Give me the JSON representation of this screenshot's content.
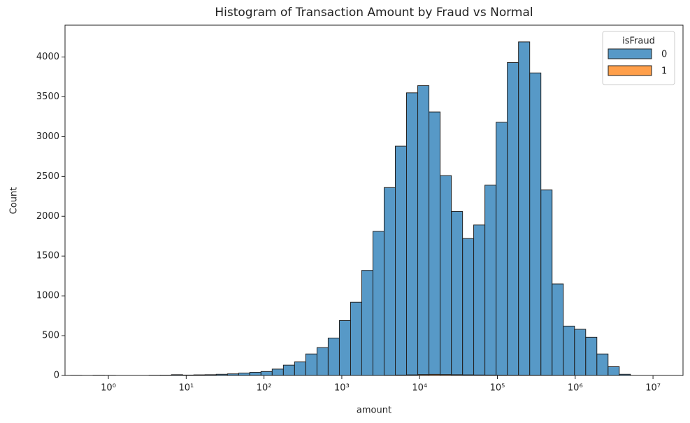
{
  "chart_data": {
    "type": "histogram",
    "title": "Histogram of Transaction Amount by Fraud vs Normal",
    "x_label": "amount",
    "y_label": "Count",
    "xscale": "log",
    "xlim": [
      0.277,
      24300000
    ],
    "ylim": [
      0,
      4400
    ],
    "xticks": [
      {
        "value": 1,
        "label": "10⁰"
      },
      {
        "value": 10,
        "label": "10¹"
      },
      {
        "value": 100,
        "label": "10²"
      },
      {
        "value": 1000,
        "label": "10³"
      },
      {
        "value": 10000,
        "label": "10⁴"
      },
      {
        "value": 100000,
        "label": "10⁵"
      },
      {
        "value": 1000000,
        "label": "10⁶"
      },
      {
        "value": 10000000,
        "label": "10⁷"
      }
    ],
    "yticks": [
      0,
      500,
      1000,
      1500,
      2000,
      2500,
      3000,
      3500,
      4000
    ],
    "legend_title": "isFraud",
    "legend_position": "upper right",
    "bins": [
      0.327,
      0.456,
      0.635,
      0.885,
      1.233,
      1.718,
      2.39,
      3.33,
      4.64,
      6.46,
      9.0,
      12.53,
      17.46,
      24.3,
      33.9,
      47.2,
      65.7,
      91.5,
      127.4,
      177.5,
      247,
      344,
      480,
      668,
      931,
      1297,
      1805,
      2513,
      3500,
      4876,
      6792,
      9462,
      13183,
      18365,
      25586,
      35645,
      49545,
      69024,
      96166,
      133968,
      186638,
      260016,
      362243,
      504661,
      703063,
      979479,
      1362900,
      1898000,
      2644000,
      3683000,
      5129000
    ],
    "series": [
      {
        "name": "0",
        "color": "#1f77b4",
        "values": [
          1,
          0,
          2,
          1,
          0,
          0,
          0,
          2,
          3,
          10,
          5,
          8,
          10,
          15,
          20,
          30,
          40,
          50,
          80,
          130,
          170,
          270,
          350,
          470,
          690,
          920,
          1320,
          1810,
          2360,
          2880,
          3550,
          3640,
          3310,
          2510,
          2060,
          1720,
          1890,
          2390,
          3180,
          3930,
          4190,
          3800,
          2330,
          1150,
          620,
          580,
          480,
          270,
          110,
          15
        ]
      },
      {
        "name": "1",
        "color": "#ff7f0e",
        "values": [
          0,
          0,
          0,
          0,
          0,
          0,
          0,
          0,
          0,
          0,
          0,
          0,
          0,
          0,
          0,
          0,
          0,
          0,
          0,
          0,
          0,
          0,
          0,
          0,
          0,
          0,
          0,
          0,
          2,
          5,
          8,
          12,
          14,
          12,
          10,
          8,
          6,
          5,
          4,
          3,
          3,
          2,
          2,
          1,
          1,
          0,
          0,
          0,
          0,
          0
        ]
      }
    ]
  }
}
